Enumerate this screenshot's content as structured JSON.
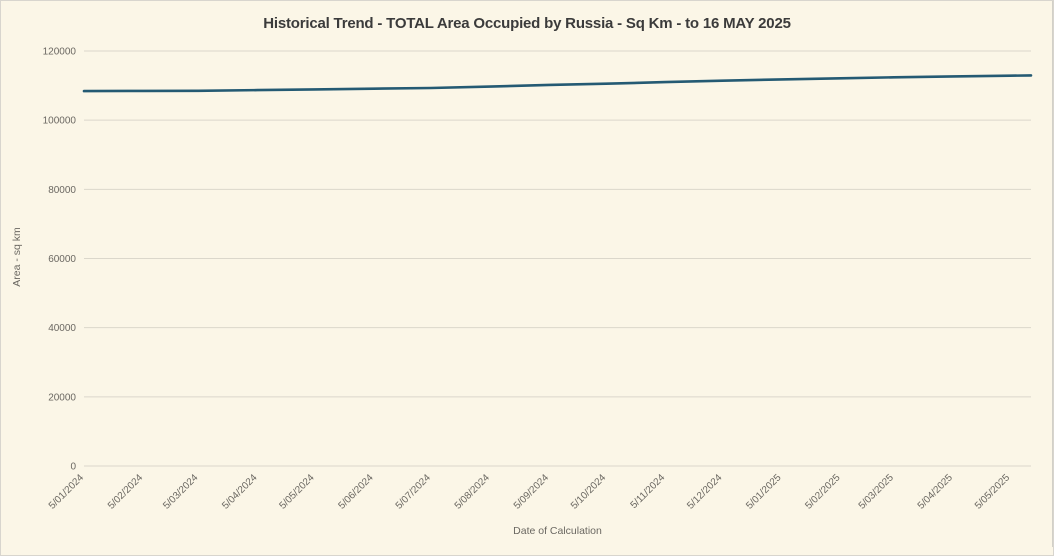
{
  "colors": {
    "background": "#FBF6E7",
    "line": "#245A73",
    "grid": "#DBD7CB",
    "axis_text": "#6B6862",
    "title_text": "#3B3B3B"
  },
  "chart_data": {
    "type": "line",
    "title": "Historical Trend - TOTAL Area Occupied by Russia - Sq Km - to 16 MAY 2025",
    "xlabel": "Date of Calculation",
    "ylabel": "Area - sq km",
    "ylim": [
      0,
      120000
    ],
    "y_ticks": [
      120000,
      100000,
      80000,
      60000,
      40000,
      20000,
      0
    ],
    "grid": "horizontal",
    "legend": "none",
    "x_domain": [
      "2024-01-05",
      "2025-05-16"
    ],
    "x_ticks": [
      {
        "label": "5/01/2024",
        "date": "2024-01-05"
      },
      {
        "label": "5/02/2024",
        "date": "2024-02-05"
      },
      {
        "label": "5/03/2024",
        "date": "2024-03-05"
      },
      {
        "label": "5/04/2024",
        "date": "2024-04-05"
      },
      {
        "label": "5/05/2024",
        "date": "2024-05-05"
      },
      {
        "label": "5/06/2024",
        "date": "2024-06-05"
      },
      {
        "label": "5/07/2024",
        "date": "2024-07-05"
      },
      {
        "label": "5/08/2024",
        "date": "2024-08-05"
      },
      {
        "label": "5/09/2024",
        "date": "2024-09-05"
      },
      {
        "label": "5/10/2024",
        "date": "2024-10-05"
      },
      {
        "label": "5/11/2024",
        "date": "2024-11-05"
      },
      {
        "label": "5/12/2024",
        "date": "2024-12-05"
      },
      {
        "label": "5/01/2025",
        "date": "2025-01-05"
      },
      {
        "label": "5/02/2025",
        "date": "2025-02-05"
      },
      {
        "label": "5/03/2025",
        "date": "2025-03-05"
      },
      {
        "label": "5/04/2025",
        "date": "2025-04-05"
      },
      {
        "label": "5/05/2025",
        "date": "2025-05-05"
      }
    ],
    "series": [
      {
        "name": "TOTAL Area Occupied by Russia - Sq Km",
        "points": [
          {
            "date": "2024-01-05",
            "value": 108400
          },
          {
            "date": "2024-02-05",
            "value": 108450
          },
          {
            "date": "2024-03-05",
            "value": 108500
          },
          {
            "date": "2024-04-05",
            "value": 108700
          },
          {
            "date": "2024-05-05",
            "value": 108900
          },
          {
            "date": "2024-06-05",
            "value": 109100
          },
          {
            "date": "2024-07-05",
            "value": 109300
          },
          {
            "date": "2024-08-05",
            "value": 109700
          },
          {
            "date": "2024-09-05",
            "value": 110200
          },
          {
            "date": "2024-10-05",
            "value": 110550
          },
          {
            "date": "2024-11-05",
            "value": 111000
          },
          {
            "date": "2024-12-05",
            "value": 111400
          },
          {
            "date": "2025-01-05",
            "value": 111800
          },
          {
            "date": "2025-02-05",
            "value": 112100
          },
          {
            "date": "2025-03-05",
            "value": 112400
          },
          {
            "date": "2025-04-05",
            "value": 112650
          },
          {
            "date": "2025-05-05",
            "value": 112850
          },
          {
            "date": "2025-05-16",
            "value": 112950
          }
        ]
      }
    ]
  }
}
